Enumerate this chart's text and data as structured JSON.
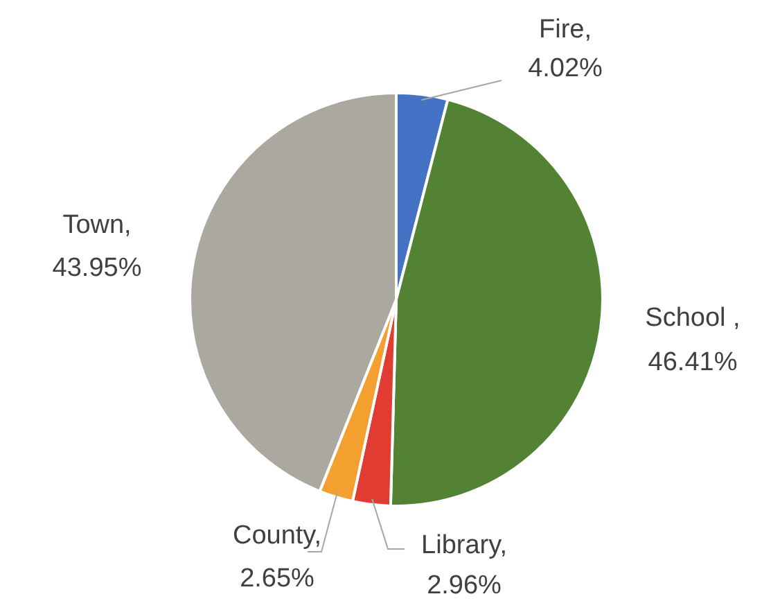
{
  "chart_data": {
    "type": "pie",
    "categories": [
      "Fire",
      "School ",
      "Library",
      "County",
      "Town"
    ],
    "value_labels": [
      ", 4.02%",
      ", 46.41%",
      ", 2.96%",
      ", 2.65%",
      ", 43.95%"
    ],
    "values": [
      4.02,
      46.41,
      2.96,
      2.65,
      43.95
    ],
    "colors": [
      "#4472c4",
      "#548235",
      "#e03c31",
      "#f4a030",
      "#aba8a0"
    ],
    "legend": false
  }
}
